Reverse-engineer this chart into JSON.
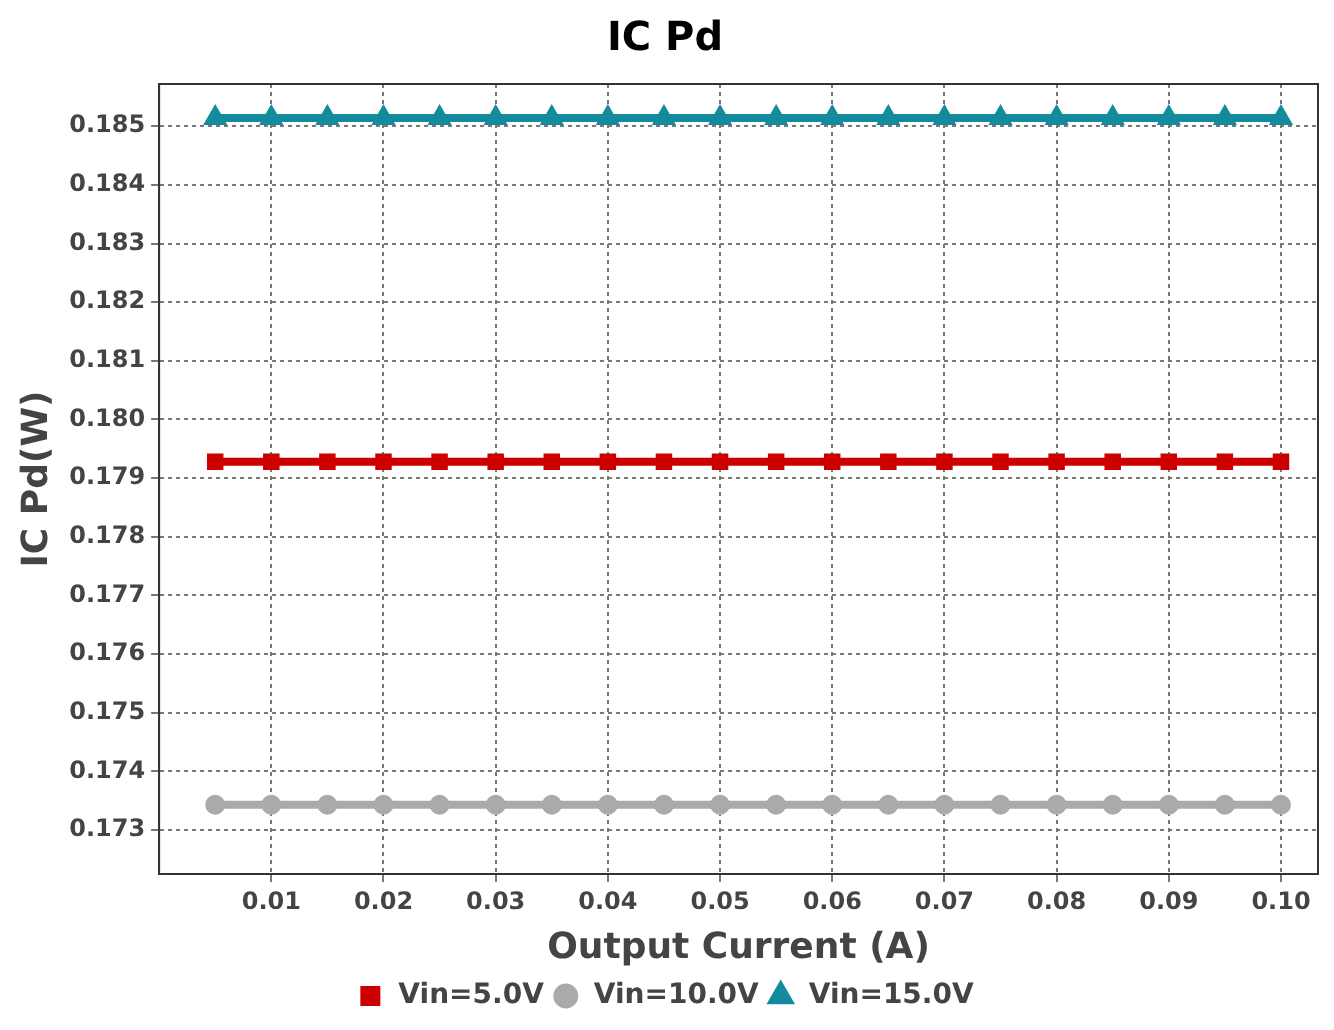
{
  "chart_data": {
    "type": "line",
    "title": "IC Pd",
    "xlabel": "Output Current (A)",
    "ylabel": "IC Pd(W)",
    "x": [
      0.005,
      0.01,
      0.015,
      0.02,
      0.025,
      0.03,
      0.035,
      0.04,
      0.045,
      0.05,
      0.055,
      0.06,
      0.065,
      0.07,
      0.075,
      0.08,
      0.085,
      0.09,
      0.095,
      0.1
    ],
    "series": [
      {
        "name": "Vin=5.0V",
        "color": "#cc0000",
        "marker": "square",
        "values": [
          0.17928,
          0.17928,
          0.17928,
          0.17928,
          0.17928,
          0.17928,
          0.17928,
          0.17928,
          0.17928,
          0.17928,
          0.17928,
          0.17928,
          0.17928,
          0.17928,
          0.17928,
          0.17928,
          0.17928,
          0.17928,
          0.17928,
          0.17928
        ]
      },
      {
        "name": "Vin=10.0V",
        "color": "#aaaaaa",
        "marker": "circle",
        "values": [
          0.17343,
          0.17343,
          0.17343,
          0.17343,
          0.17343,
          0.17343,
          0.17343,
          0.17343,
          0.17343,
          0.17343,
          0.17343,
          0.17343,
          0.17343,
          0.17343,
          0.17343,
          0.17343,
          0.17343,
          0.17343,
          0.17343,
          0.17343
        ]
      },
      {
        "name": "Vin=15.0V",
        "color": "#138a9e",
        "marker": "triangle",
        "values": [
          0.18514,
          0.18514,
          0.18514,
          0.18514,
          0.18514,
          0.18514,
          0.18514,
          0.18514,
          0.18514,
          0.18514,
          0.18514,
          0.18514,
          0.18514,
          0.18514,
          0.18514,
          0.18514,
          0.18514,
          0.18514,
          0.18514,
          0.18514
        ]
      }
    ],
    "xlim": [
      0,
      0.1033
    ],
    "xticks": [
      0.01,
      0.02,
      0.03,
      0.04,
      0.05,
      0.06,
      0.07,
      0.08,
      0.09,
      {
        "value": 0.1,
        "label": "0.10"
      }
    ],
    "ylim": [
      0.17225,
      0.18572
    ],
    "yticks": [
      0.173,
      0.174,
      0.175,
      0.176,
      0.177,
      0.178,
      0.179,
      {
        "value": 0.18,
        "label": "0.180"
      },
      0.181,
      0.182,
      0.183,
      0.184,
      0.185
    ],
    "grid": true,
    "legend": "bottom",
    "line_style": "solid"
  }
}
